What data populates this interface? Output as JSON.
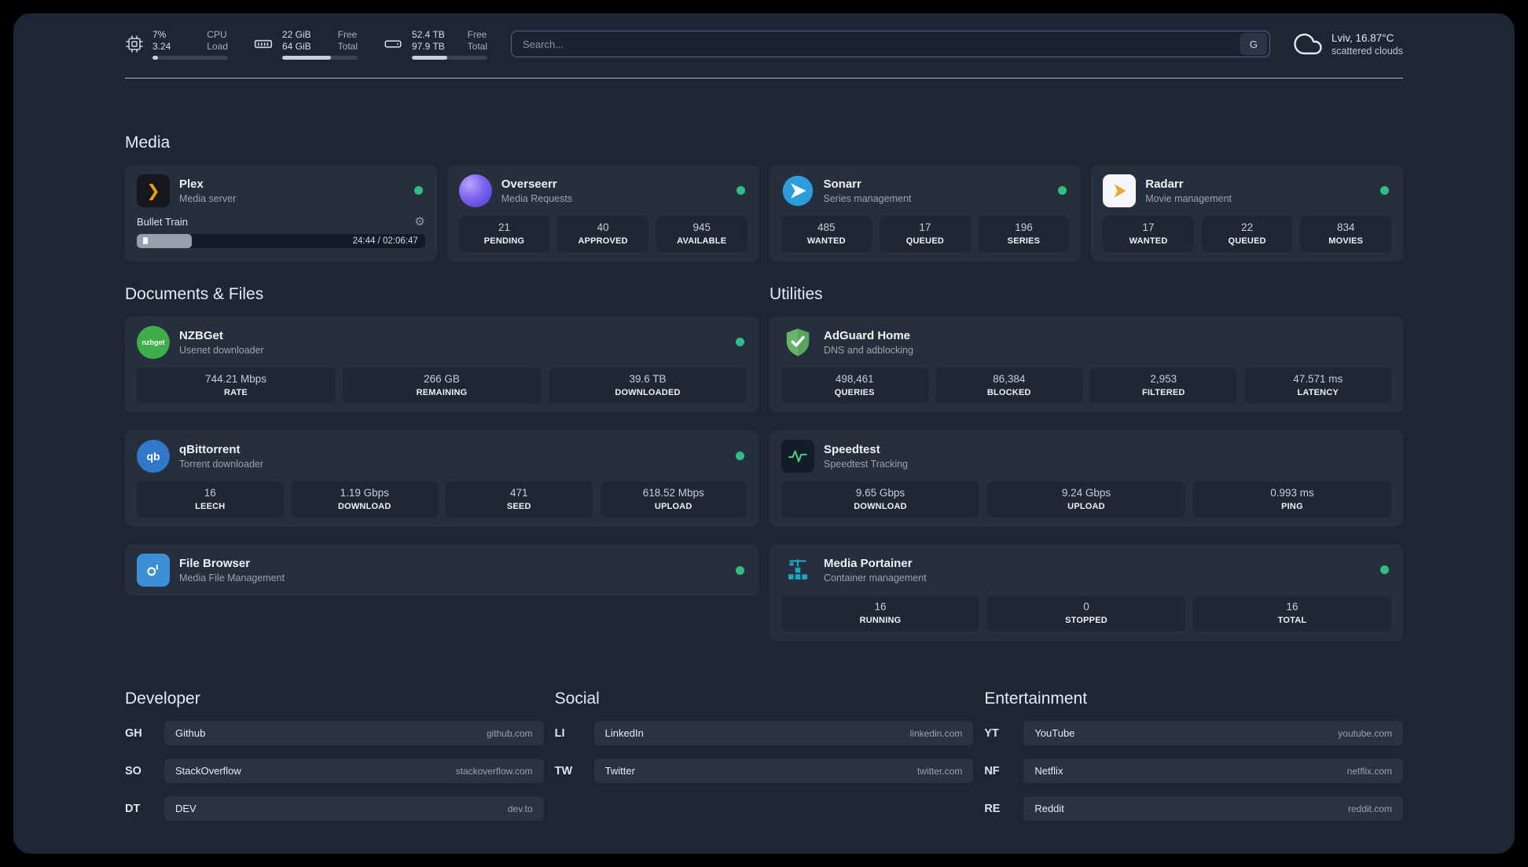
{
  "topbar": {
    "cpu": {
      "value1": "7%",
      "value2": "3.24",
      "label1": "CPU",
      "label2": "Load",
      "bar_percent": 7
    },
    "memory": {
      "value1": "22 GiB",
      "value2": "64 GiB",
      "label1": "Free",
      "label2": "Total",
      "bar_percent": 65
    },
    "disk": {
      "value1": "52.4 TB",
      "value2": "97.9 TB",
      "label1": "Free",
      "label2": "Total",
      "bar_percent": 47
    },
    "search": {
      "placeholder": "Search...",
      "provider": "G"
    },
    "weather": {
      "location": "Lviv, 16.87°C",
      "condition": "scattered clouds"
    }
  },
  "sections": {
    "media": "Media",
    "documents": "Documents & Files",
    "utilities": "Utilities",
    "developer": "Developer",
    "social": "Social",
    "entertainment": "Entertainment"
  },
  "services": {
    "plex": {
      "name": "Plex",
      "subtitle": "Media server",
      "now_playing": "Bullet Train",
      "time": "24:44 / 02:06:47",
      "progress_percent": 19
    },
    "overseerr": {
      "name": "Overseerr",
      "subtitle": "Media Requests",
      "stats": [
        {
          "value": "21",
          "label": "PENDING"
        },
        {
          "value": "40",
          "label": "APPROVED"
        },
        {
          "value": "945",
          "label": "AVAILABLE"
        }
      ]
    },
    "sonarr": {
      "name": "Sonarr",
      "subtitle": "Series management",
      "stats": [
        {
          "value": "485",
          "label": "WANTED"
        },
        {
          "value": "17",
          "label": "QUEUED"
        },
        {
          "value": "196",
          "label": "SERIES"
        }
      ]
    },
    "radarr": {
      "name": "Radarr",
      "subtitle": "Movie management",
      "stats": [
        {
          "value": "17",
          "label": "WANTED"
        },
        {
          "value": "22",
          "label": "QUEUED"
        },
        {
          "value": "834",
          "label": "MOVIES"
        }
      ]
    },
    "nzbget": {
      "name": "NZBGet",
      "subtitle": "Usenet downloader",
      "icon_text": "nzbget",
      "stats": [
        {
          "value": "744.21 Mbps",
          "label": "RATE"
        },
        {
          "value": "266 GB",
          "label": "REMAINING"
        },
        {
          "value": "39.6 TB",
          "label": "DOWNLOADED"
        }
      ]
    },
    "qbittorrent": {
      "name": "qBittorrent",
      "subtitle": "Torrent downloader",
      "icon_text": "qb",
      "stats": [
        {
          "value": "16",
          "label": "LEECH"
        },
        {
          "value": "1.19 Gbps",
          "label": "DOWNLOAD"
        },
        {
          "value": "471",
          "label": "SEED"
        },
        {
          "value": "618.52 Mbps",
          "label": "UPLOAD"
        }
      ]
    },
    "filebrowser": {
      "name": "File Browser",
      "subtitle": "Media File Management"
    },
    "adguard": {
      "name": "AdGuard Home",
      "subtitle": "DNS and adblocking",
      "stats": [
        {
          "value": "498,461",
          "label": "QUERIES"
        },
        {
          "value": "86,384",
          "label": "BLOCKED"
        },
        {
          "value": "2,953",
          "label": "FILTERED"
        },
        {
          "value": "47.571 ms",
          "label": "LATENCY"
        }
      ]
    },
    "speedtest": {
      "name": "Speedtest",
      "subtitle": "Speedtest Tracking",
      "stats": [
        {
          "value": "9.65 Gbps",
          "label": "DOWNLOAD"
        },
        {
          "value": "9.24 Gbps",
          "label": "UPLOAD"
        },
        {
          "value": "0.993 ms",
          "label": "PING"
        }
      ]
    },
    "portainer": {
      "name": "Media Portainer",
      "subtitle": "Container management",
      "stats": [
        {
          "value": "16",
          "label": "RUNNING"
        },
        {
          "value": "0",
          "label": "STOPPED"
        },
        {
          "value": "16",
          "label": "TOTAL"
        }
      ]
    }
  },
  "bookmarks": {
    "developer": [
      {
        "abbr": "GH",
        "name": "Github",
        "domain": "github.com"
      },
      {
        "abbr": "SO",
        "name": "StackOverflow",
        "domain": "stackoverflow.com"
      },
      {
        "abbr": "DT",
        "name": "DEV",
        "domain": "dev.to"
      }
    ],
    "social": [
      {
        "abbr": "LI",
        "name": "LinkedIn",
        "domain": "linkedin.com"
      },
      {
        "abbr": "TW",
        "name": "Twitter",
        "domain": "twitter.com"
      }
    ],
    "entertainment": [
      {
        "abbr": "YT",
        "name": "YouTube",
        "domain": "youtube.com"
      },
      {
        "abbr": "NF",
        "name": "Netflix",
        "domain": "netflix.com"
      },
      {
        "abbr": "RE",
        "name": "Reddit",
        "domain": "reddit.com"
      }
    ]
  },
  "colors": {
    "status_green": "#2fbe82",
    "plex_gold": "#e5a00d",
    "overseerr_purple": "#7e63f1",
    "sonarr_blue": "#2d9cdb",
    "radarr_orange": "#f0a12e",
    "nzbget_green": "#3fae4a",
    "qbittorrent_blue": "#3079c8",
    "filebrowser_blue": "#3b8fd4",
    "adguard_green": "#67b36a",
    "speedtest_green": "#3ddc84",
    "portainer_teal": "#1ba7c4"
  }
}
